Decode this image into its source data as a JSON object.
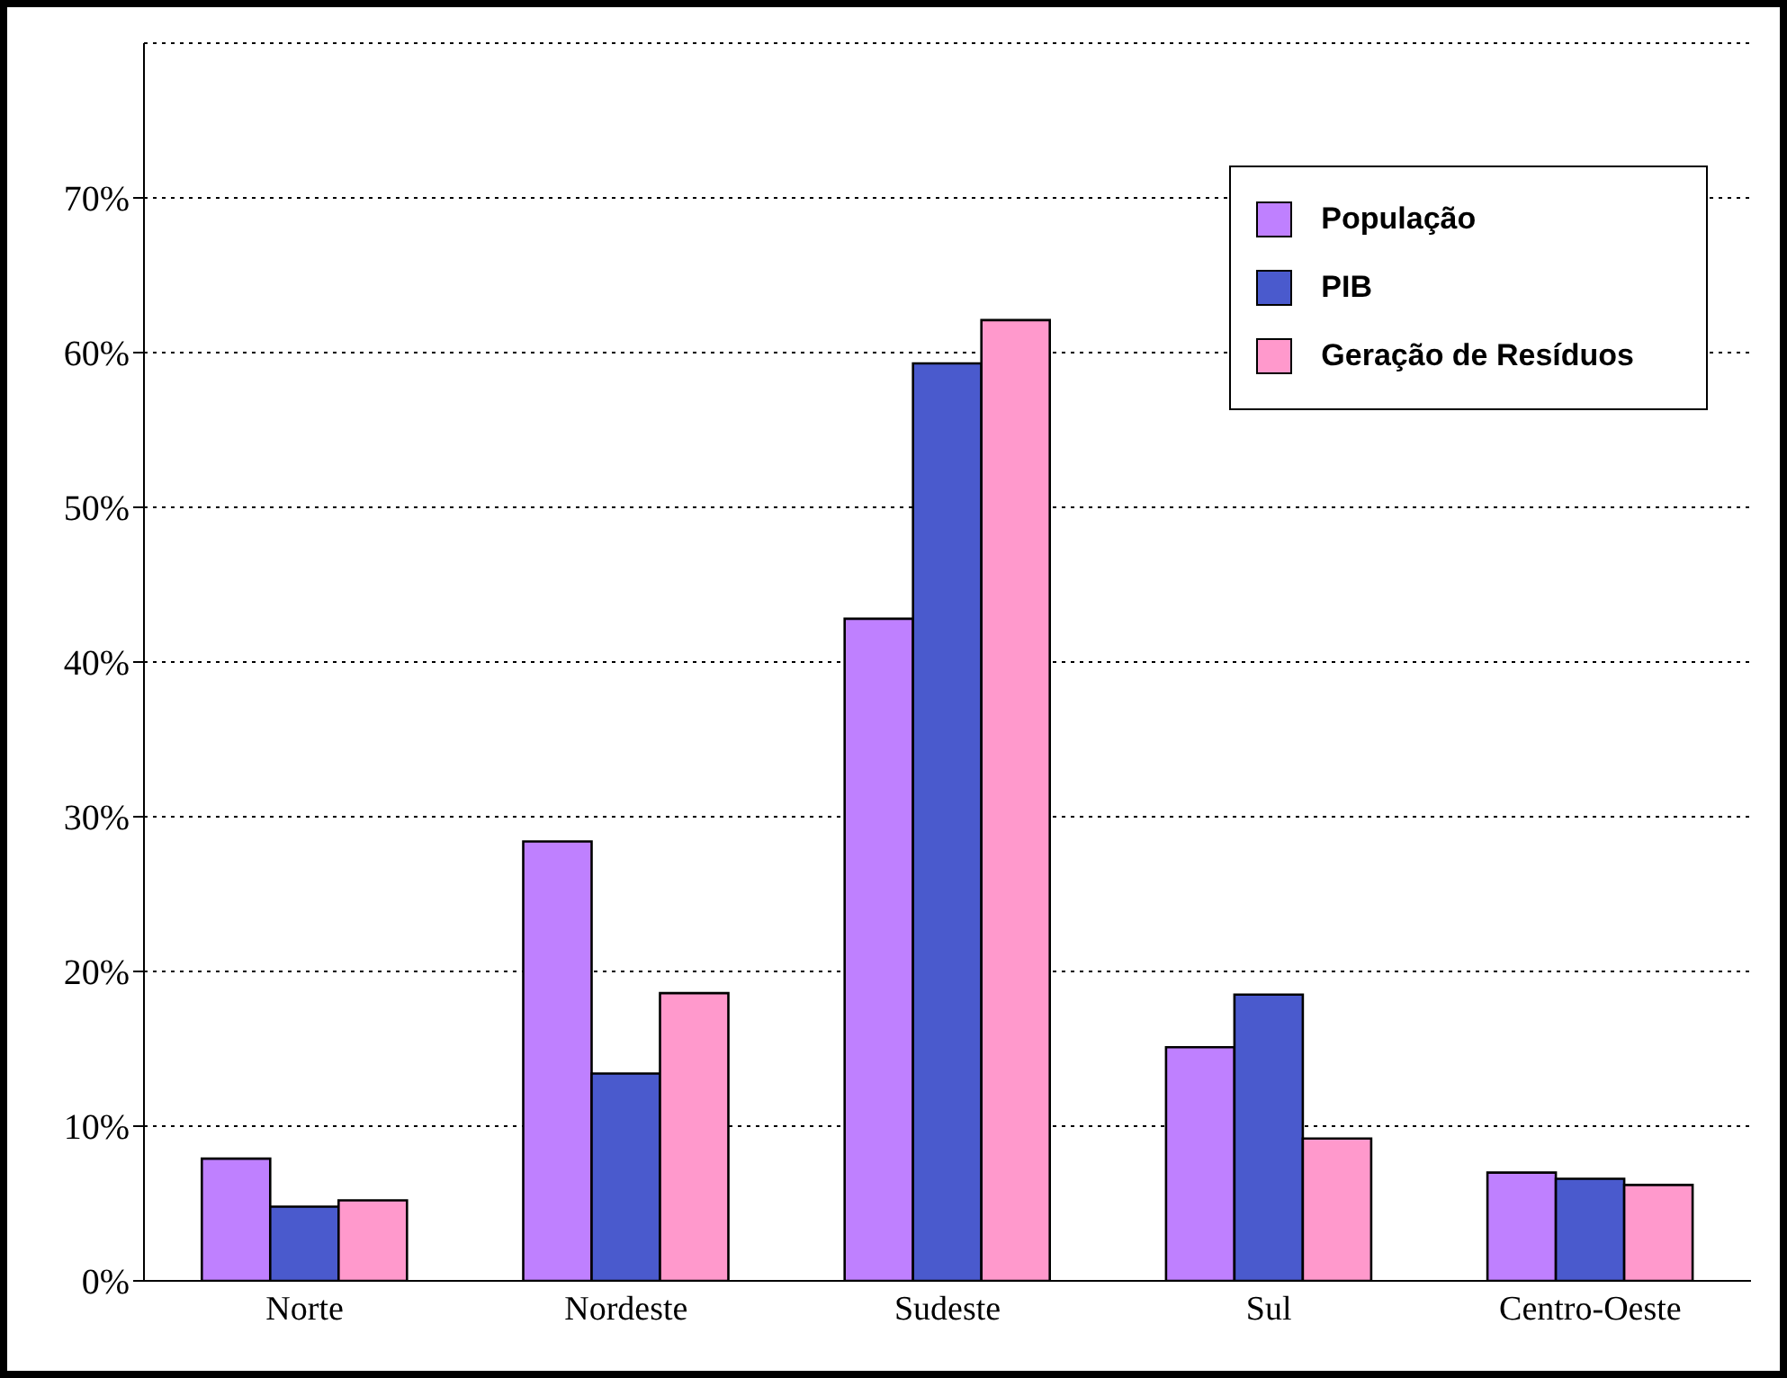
{
  "chart_data": {
    "type": "bar",
    "categories": [
      "Norte",
      "Nordeste",
      "Sudeste",
      "Sul",
      "Centro-Oeste"
    ],
    "series": [
      {
        "name": "População",
        "color": "#bf80ff",
        "values": [
          7.9,
          28.4,
          42.8,
          15.1,
          7.0
        ]
      },
      {
        "name": "PIB",
        "color": "#4a5acd",
        "values": [
          4.8,
          13.4,
          59.3,
          18.5,
          6.6
        ]
      },
      {
        "name": "Geração de Resíduos",
        "color": "#ff99cc",
        "values": [
          5.2,
          18.6,
          62.1,
          9.2,
          6.2
        ]
      }
    ],
    "ylim": [
      0,
      80
    ],
    "yticks": [
      {
        "value": 0,
        "label": "0%"
      },
      {
        "value": 10,
        "label": "10%"
      },
      {
        "value": 20,
        "label": "20%"
      },
      {
        "value": 30,
        "label": "30%"
      },
      {
        "value": 40,
        "label": "40%"
      },
      {
        "value": 50,
        "label": "50%"
      },
      {
        "value": 60,
        "label": "60%"
      },
      {
        "value": 70,
        "label": "70%"
      }
    ],
    "grid": "y",
    "legend": "top right"
  }
}
